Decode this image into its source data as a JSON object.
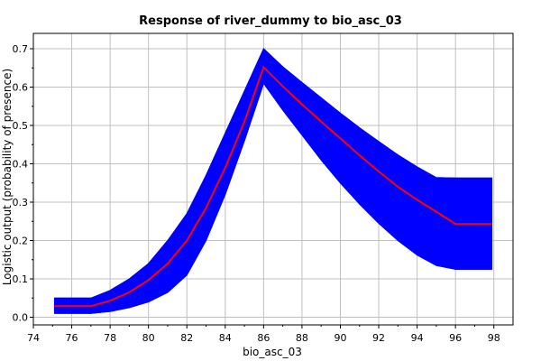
{
  "chart_data": {
    "type": "line",
    "title": "Response of river_dummy to bio_asc_03",
    "xlabel": "bio_asc_03",
    "ylabel": "Logistic output (probability of presence)",
    "xlim": [
      74,
      99
    ],
    "ylim": [
      -0.02,
      0.74
    ],
    "x_ticks": [
      74,
      76,
      78,
      80,
      82,
      84,
      86,
      88,
      90,
      92,
      94,
      96,
      98
    ],
    "y_ticks": [
      0.0,
      0.1,
      0.2,
      0.3,
      0.4,
      0.5,
      0.6,
      0.7
    ],
    "x_tick_labels": [
      "74",
      "76",
      "78",
      "80",
      "82",
      "84",
      "86",
      "88",
      "90",
      "92",
      "94",
      "96",
      "98"
    ],
    "y_tick_labels": [
      "0.0",
      "0.1",
      "0.2",
      "0.3",
      "0.4",
      "0.5",
      "0.6",
      "0.7"
    ],
    "grid": true,
    "colors": {
      "mean": "#ff0000",
      "band": "#0000ff"
    },
    "series": [
      {
        "role": "mean",
        "x": [
          75.1,
          76.0,
          77.0,
          78.0,
          79.0,
          80.0,
          81.0,
          82.0,
          83.0,
          84.0,
          85.0,
          86.0,
          87.0,
          88.0,
          89.0,
          90.0,
          91.0,
          92.0,
          93.0,
          94.0,
          95.0,
          96.0,
          97.0,
          97.9
        ],
        "y": [
          0.029,
          0.029,
          0.029,
          0.043,
          0.065,
          0.097,
          0.14,
          0.2,
          0.285,
          0.39,
          0.51,
          0.652,
          0.602,
          0.555,
          0.51,
          0.466,
          0.422,
          0.38,
          0.34,
          0.306,
          0.275,
          0.243,
          0.243,
          0.243
        ]
      },
      {
        "role": "upper",
        "x": [
          75.1,
          76.0,
          77.0,
          78.0,
          79.0,
          80.0,
          81.0,
          82.0,
          83.0,
          84.0,
          85.0,
          86.0,
          87.0,
          88.0,
          89.0,
          90.0,
          91.0,
          92.0,
          93.0,
          94.0,
          95.0,
          96.0,
          97.0,
          97.9
        ],
        "y": [
          0.05,
          0.05,
          0.05,
          0.07,
          0.1,
          0.14,
          0.2,
          0.27,
          0.37,
          0.48,
          0.59,
          0.7,
          0.653,
          0.612,
          0.572,
          0.532,
          0.494,
          0.458,
          0.423,
          0.392,
          0.364,
          0.363,
          0.363,
          0.363
        ]
      },
      {
        "role": "lower",
        "x": [
          75.1,
          76.0,
          77.0,
          78.0,
          79.0,
          80.0,
          81.0,
          82.0,
          83.0,
          84.0,
          85.0,
          86.0,
          87.0,
          88.0,
          89.0,
          90.0,
          91.0,
          92.0,
          93.0,
          94.0,
          95.0,
          96.0,
          97.0,
          97.9
        ],
        "y": [
          0.01,
          0.01,
          0.01,
          0.015,
          0.025,
          0.04,
          0.065,
          0.11,
          0.2,
          0.32,
          0.46,
          0.61,
          0.54,
          0.475,
          0.41,
          0.35,
          0.295,
          0.245,
          0.2,
          0.162,
          0.135,
          0.125,
          0.125,
          0.125
        ]
      }
    ]
  }
}
